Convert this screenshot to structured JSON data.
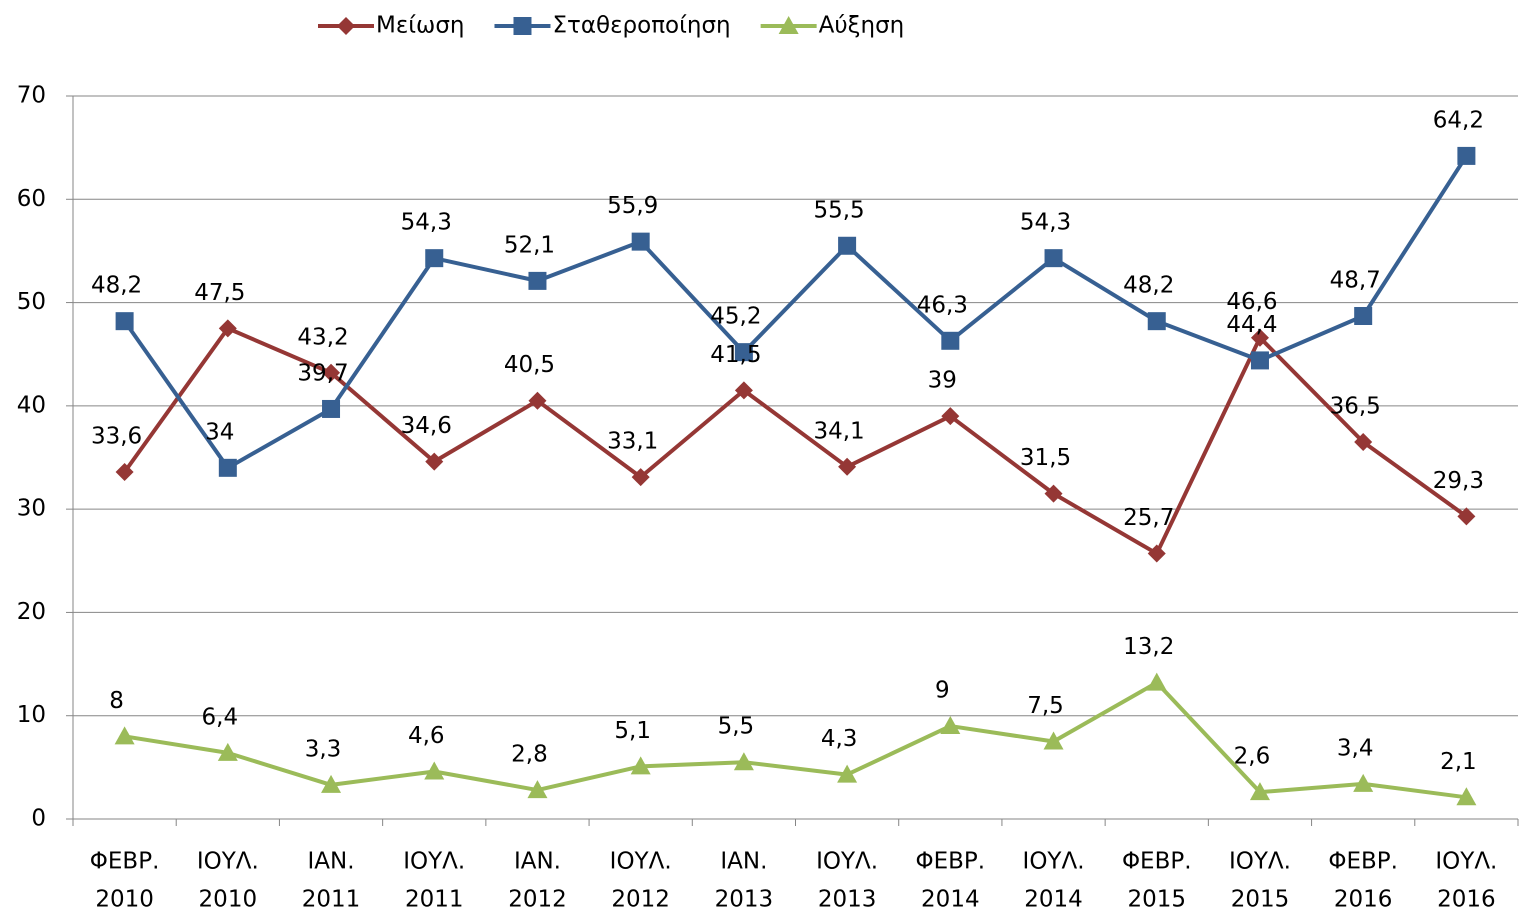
{
  "chart_data": {
    "type": "line",
    "categories": [
      [
        "ΦΕΒΡ.",
        "2010"
      ],
      [
        "ΙΟΥΛ.",
        "2010"
      ],
      [
        "ΙΑΝ.",
        "2011"
      ],
      [
        "ΙΟΥΛ.",
        "2011"
      ],
      [
        "ΙΑΝ.",
        "2012"
      ],
      [
        "ΙΟΥΛ.",
        "2012"
      ],
      [
        "ΙΑΝ.",
        "2013"
      ],
      [
        "ΙΟΥΛ.",
        "2013"
      ],
      [
        "ΦΕΒΡ.",
        "2014"
      ],
      [
        "ΙΟΥΛ.",
        "2014"
      ],
      [
        "ΦΕΒΡ.",
        "2015"
      ],
      [
        "ΙΟΥΛ.",
        "2015"
      ],
      [
        "ΦΕΒΡ.",
        "2016"
      ],
      [
        "ΙΟΥΛ.",
        "2016"
      ]
    ],
    "series": [
      {
        "name": "Μείωση",
        "color": "#953735",
        "marker": "diamond",
        "values": [
          33.6,
          47.5,
          43.2,
          34.6,
          40.5,
          33.1,
          41.5,
          34.1,
          39,
          31.5,
          25.7,
          46.6,
          36.5,
          29.3
        ],
        "value_labels": [
          "33,6",
          "47,5",
          "43,2",
          "34,6",
          "40,5",
          "33,1",
          "41,5",
          "34,1",
          "39",
          "31,5",
          "25,7",
          "46,6",
          "36,5",
          "29,3"
        ]
      },
      {
        "name": "Σταθεροποίηση",
        "color": "#376092",
        "marker": "square",
        "values": [
          48.2,
          34,
          39.7,
          54.3,
          52.1,
          55.9,
          45.2,
          55.5,
          46.3,
          54.3,
          48.2,
          44.4,
          48.7,
          64.2
        ],
        "value_labels": [
          "48,2",
          "34",
          "39,7",
          "54,3",
          "52,1",
          "55,9",
          "45,2",
          "55,5",
          "46,3",
          "54,3",
          "48,2",
          "44,4",
          "48,7",
          "64,2"
        ]
      },
      {
        "name": "Αύξηση",
        "color": "#9bbb59",
        "marker": "triangle",
        "values": [
          8,
          6.4,
          3.3,
          4.6,
          2.8,
          5.1,
          5.5,
          4.3,
          9,
          7.5,
          13.2,
          2.6,
          3.4,
          2.1
        ],
        "value_labels": [
          "8",
          "6,4",
          "3,3",
          "4,6",
          "2,8",
          "5,1",
          "5,5",
          "4,3",
          "9",
          "7,5",
          "13,2",
          "2,6",
          "3,4",
          "2,1"
        ]
      }
    ],
    "ylim": [
      0,
      70
    ],
    "yticks": [
      0,
      10,
      20,
      30,
      40,
      50,
      60,
      70
    ],
    "grid": true,
    "legend": "top"
  }
}
